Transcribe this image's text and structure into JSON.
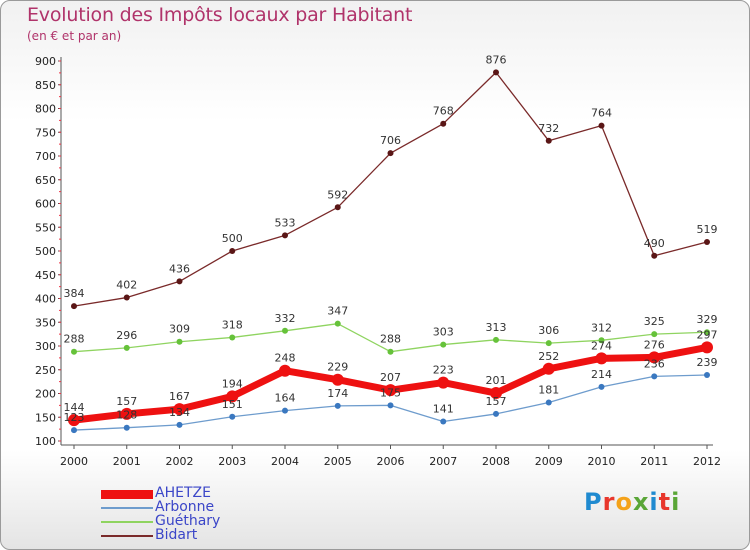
{
  "title": "Evolution des Impôts locaux par Habitant",
  "subtitle": "(en € et par an)",
  "logo": {
    "text": "Proxiti",
    "colors": [
      "#1f8ad0",
      "#e8372c",
      "#f4a21a",
      "#5aa637",
      "#1f8ad0",
      "#e8372c",
      "#5aa637"
    ]
  },
  "chart_data": {
    "type": "line",
    "title": "Evolution des Impôts locaux par Habitant",
    "subtitle": "(en € et par an)",
    "x": [
      "2000",
      "2001",
      "2002",
      "2003",
      "2004",
      "2005",
      "2006",
      "2007",
      "2008",
      "2009",
      "2010",
      "2011",
      "2012"
    ],
    "ylim": [
      100,
      900
    ],
    "yticks": [
      100,
      150,
      200,
      250,
      300,
      350,
      400,
      450,
      500,
      550,
      600,
      650,
      700,
      750,
      800,
      850,
      900
    ],
    "grid": false,
    "legend_position": "bottom-left",
    "series": [
      {
        "name": "AHETZE",
        "color": "#ee1111",
        "values": [
          144,
          157,
          167,
          194,
          248,
          229,
          207,
          223,
          201,
          252,
          274,
          276,
          297
        ],
        "labels": [
          "144",
          "157",
          "167",
          "194",
          "248",
          "229",
          "207",
          "223",
          "201",
          "252",
          "274",
          "276",
          "297"
        ]
      },
      {
        "name": "Arbonne",
        "color": "#6e9ccd",
        "values": [
          123,
          128,
          134,
          151,
          164,
          174,
          175,
          141,
          157,
          181,
          214,
          236,
          239
        ],
        "labels": [
          "123",
          "128",
          "134",
          "151",
          "164",
          "174",
          "175",
          "141",
          "157",
          "181",
          "214",
          "236",
          "239"
        ]
      },
      {
        "name": "Guéthary",
        "color": "#8fd460",
        "values": [
          288,
          296,
          309,
          318,
          332,
          347,
          288,
          303,
          313,
          306,
          312,
          325,
          329
        ],
        "labels": [
          "288",
          "296",
          "309",
          "318",
          "332",
          "347",
          "288",
          "303",
          "313",
          "306",
          "312",
          "325",
          "329"
        ]
      },
      {
        "name": "Bidart",
        "color": "#7a2a2a",
        "values": [
          384,
          402,
          436,
          500,
          533,
          592,
          706,
          768,
          876,
          732,
          764,
          490,
          519
        ],
        "labels": [
          "384",
          "402",
          "436",
          "500",
          "533",
          "592",
          "706",
          "768",
          "876",
          "732",
          "764",
          "490",
          "519"
        ]
      }
    ]
  }
}
